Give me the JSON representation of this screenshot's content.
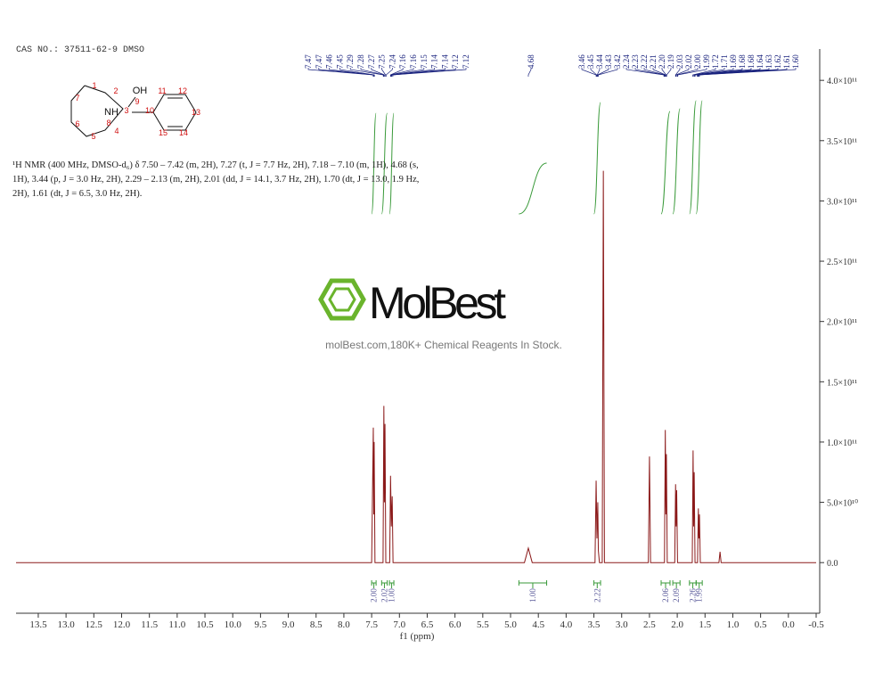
{
  "header": "CAS NO.: 37511-62-9 DMSO",
  "nmr_text": "¹H NMR (400 MHz, DMSO-d₆) δ 7.50 – 7.42 (m, 2H), 7.27 (t, J = 7.7 Hz, 2H), 7.18 – 7.10 (m, 1H), 4.68 (s, 1H), 3.44 (p, J = 3.0 Hz, 2H), 2.29 – 2.13 (m, 2H), 2.01 (dd, J = 14.1, 3.7 Hz, 2H), 1.70 (dt, J = 13.0, 1.9 Hz, 2H), 1.61 (dt, J = 6.5, 3.0 Hz, 2H).",
  "structure": {
    "atoms": [
      "1",
      "2",
      "OH",
      "9",
      "11",
      "12",
      "7",
      "NH",
      "3",
      "10",
      "13",
      "6",
      "8",
      "15",
      "14",
      "4",
      "5"
    ]
  },
  "watermark": {
    "brand": "MolBest",
    "tagline": "molBest.com,180K+ Chemical Reagents In Stock."
  },
  "chart_data": {
    "type": "line",
    "x_label": "f1 (ppm)",
    "xlim": [
      13.9,
      -0.5
    ],
    "xticks": [
      13.5,
      {
        "value": 13,
        "label": "13.0"
      },
      12.5,
      {
        "value": 12,
        "label": "12.0"
      },
      11.5,
      {
        "value": 11,
        "label": "11.0"
      },
      10.5,
      {
        "value": 10,
        "label": "10.0"
      },
      9.5,
      {
        "value": 9,
        "label": "9.0"
      },
      8.5,
      {
        "value": 8,
        "label": "8.0"
      },
      7.5,
      {
        "value": 7,
        "label": "7.0"
      },
      6.5,
      {
        "value": 6,
        "label": "6.0"
      },
      5.5,
      {
        "value": 5,
        "label": "5.0"
      },
      4.5,
      {
        "value": 4,
        "label": "4.0"
      },
      3.5,
      {
        "value": 3,
        "label": "3.0"
      },
      2.5,
      {
        "value": 2,
        "label": "2.0"
      },
      1.5,
      {
        "value": 1,
        "label": "1.0"
      },
      0.5,
      {
        "value": 0,
        "label": "0.0"
      },
      -0.5
    ],
    "ylim": [
      -42000000000.0,
      426000000000.0
    ],
    "yticks": [
      {
        "value": 0,
        "label": "0.0"
      },
      {
        "value": 50000000000.0,
        "label": "5.0×10¹⁰"
      },
      {
        "value": 100000000000.0,
        "label": "1.0×10¹¹"
      },
      {
        "value": 150000000000.0,
        "label": "1.5×10¹¹"
      },
      {
        "value": 200000000000.0,
        "label": "2.0×10¹¹"
      },
      {
        "value": 250000000000.0,
        "label": "2.5×10¹¹"
      },
      {
        "value": 300000000000.0,
        "label": "3.0×10¹¹"
      },
      {
        "value": 350000000000.0,
        "label": "3.5×10¹¹"
      },
      {
        "value": 400000000000.0,
        "label": "4.0×10¹¹"
      }
    ],
    "series": [
      {
        "color": "#8b1a1a",
        "x": [
          13.9,
          7.5,
          7.47,
          7.462,
          7.455,
          7.44,
          7.295,
          7.28,
          7.27,
          7.26,
          7.245,
          7.175,
          7.16,
          7.145,
          7.13,
          7.115,
          4.75,
          4.68,
          4.61,
          3.48,
          3.46,
          3.445,
          3.43,
          3.42,
          3.4,
          3.35,
          3.33,
          3.31,
          2.52,
          2.5,
          2.48,
          2.23,
          2.215,
          2.205,
          2.195,
          2.18,
          2.045,
          2.03,
          2.02,
          2.01,
          1.995,
          1.73,
          1.715,
          1.705,
          1.695,
          1.68,
          1.635,
          1.62,
          1.61,
          1.6,
          1.585,
          1.25,
          1.23,
          1.21,
          -0.5
        ],
        "values": [
          0,
          0,
          112000000000.0,
          40000000000.0,
          100000000000.0,
          0,
          0,
          130000000000.0,
          50000000000.0,
          115000000000.0,
          0,
          0,
          72000000000.0,
          30000000000.0,
          55000000000.0,
          0,
          0,
          12000000000.0,
          0,
          0,
          68000000000.0,
          20000000000.0,
          50000000000.0,
          10000000000.0,
          0,
          0,
          325000000000.0,
          0,
          0,
          88000000000.0,
          0,
          0,
          110000000000.0,
          40000000000.0,
          90000000000.0,
          0,
          0,
          65000000000.0,
          30000000000.0,
          60000000000.0,
          0,
          0,
          93000000000.0,
          30000000000.0,
          75000000000.0,
          0,
          0,
          45000000000.0,
          20000000000.0,
          40000000000.0,
          0,
          0,
          9000000000.0,
          0,
          0
        ]
      }
    ],
    "peak_labels": [
      [
        "7.47",
        "7.47",
        "7.46",
        "7.45",
        "7.29",
        "7.28",
        "7.27",
        "7.25",
        "7.24",
        "7.16",
        "7.16",
        "7.15",
        "7.14",
        "7.14",
        "7.12",
        "7.12"
      ],
      [
        "4.68"
      ],
      [
        "3.46",
        "3.45",
        "3.44",
        "3.43",
        "3.42",
        "2.24",
        "2.23",
        "2.22",
        "2.21",
        "2.20",
        "2.19",
        "2.03",
        "2.02",
        "2.00",
        "1.99",
        "1.72",
        "1.71",
        "1.69",
        "1.68",
        "1.68",
        "1.64",
        "1.63",
        "1.62",
        "1.61",
        "1.60"
      ]
    ],
    "peak_label_color": "#1a237e",
    "integral_color": "#3a9a3a",
    "integrals": [
      {
        "from": 7.5,
        "to": 7.42,
        "label": "2.00"
      },
      {
        "from": 7.32,
        "to": 7.22,
        "label": "2.02"
      },
      {
        "from": 7.18,
        "to": 7.1,
        "label": "1.00"
      },
      {
        "from": 4.85,
        "to": 4.35,
        "label": "1.00"
      },
      {
        "from": 3.5,
        "to": 3.38,
        "label": "2.22"
      },
      {
        "from": 2.29,
        "to": 2.13,
        "label": "2.06"
      },
      {
        "from": 2.08,
        "to": 1.95,
        "label": "2.09"
      },
      {
        "from": 1.78,
        "to": 1.66,
        "label": "2.26"
      },
      {
        "from": 1.66,
        "to": 1.55,
        "label": "1.99"
      }
    ]
  }
}
